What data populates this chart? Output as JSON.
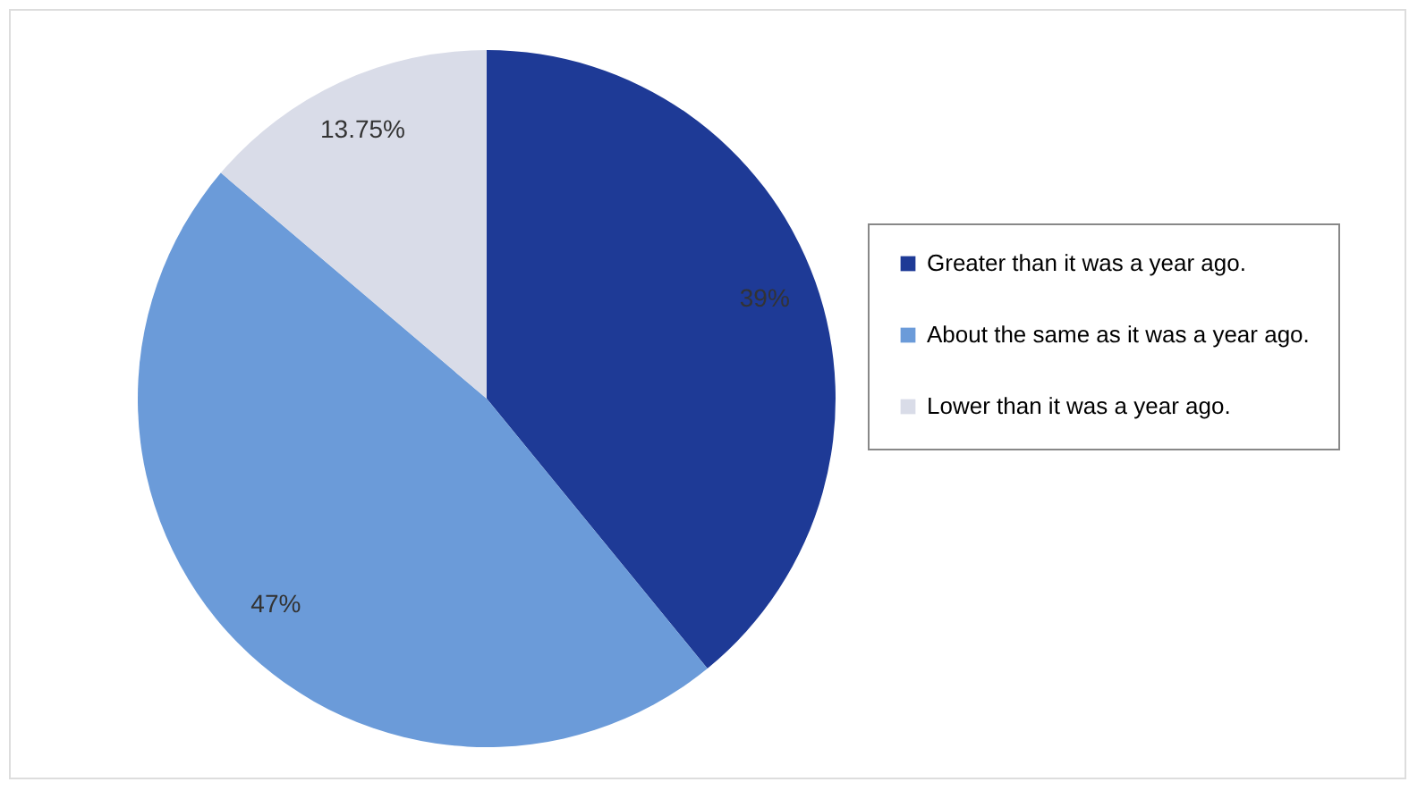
{
  "chart_data": {
    "type": "pie",
    "categories": [
      "Greater than it was a year ago.",
      "About the same as it was a year ago.",
      "Lower than it was a year ago."
    ],
    "values": [
      39,
      47,
      13.75
    ],
    "colors": [
      "#1e3a96",
      "#6b9bd9",
      "#d9dce8"
    ],
    "value_labels": [
      "39%",
      "47%",
      "13.75%"
    ],
    "legend": "right"
  }
}
